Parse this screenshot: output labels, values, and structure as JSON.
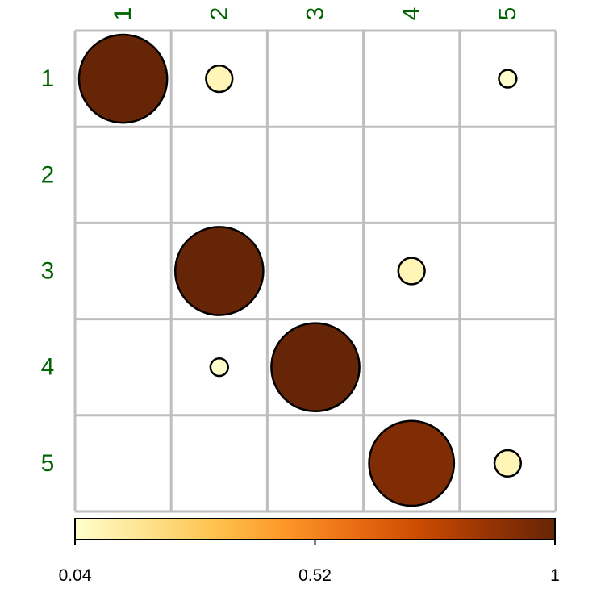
{
  "chart_data": {
    "type": "heatmap",
    "rows": [
      "1",
      "2",
      "3",
      "4",
      "5"
    ],
    "cols": [
      "1",
      "2",
      "3",
      "4",
      "5"
    ],
    "cells": [
      {
        "row": "1",
        "col": "1",
        "value": 1.0
      },
      {
        "row": "1",
        "col": "2",
        "value": 0.09
      },
      {
        "row": "1",
        "col": "5",
        "value": 0.04
      },
      {
        "row": "3",
        "col": "2",
        "value": 1.0
      },
      {
        "row": "3",
        "col": "4",
        "value": 0.09
      },
      {
        "row": "4",
        "col": "2",
        "value": 0.04
      },
      {
        "row": "4",
        "col": "3",
        "value": 1.0
      },
      {
        "row": "5",
        "col": "4",
        "value": 0.93
      },
      {
        "row": "5",
        "col": "5",
        "value": 0.09
      }
    ],
    "colorbar": {
      "min": 0.04,
      "max": 1,
      "ticks": [
        "0.04",
        "0.52",
        "1"
      ],
      "colors": [
        "#FFFFCC",
        "#FEE391",
        "#FEC44F",
        "#FE9929",
        "#EC7014",
        "#CC4C02",
        "#993404",
        "#662506"
      ]
    },
    "label_color": "#006400",
    "grid_color": "#BEBEBE"
  }
}
